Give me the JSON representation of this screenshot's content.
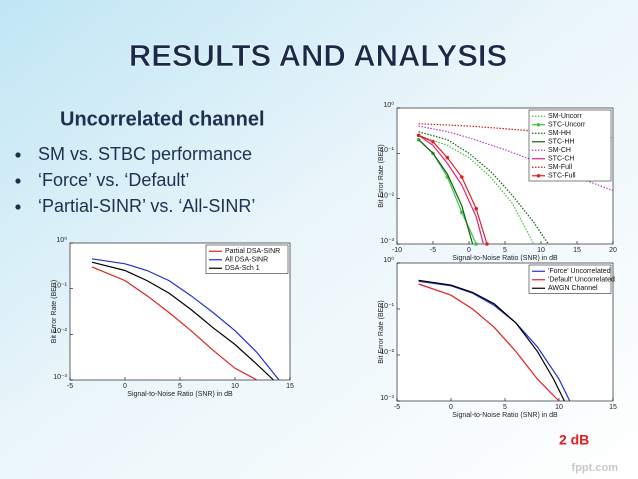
{
  "title": "RESULTS AND ANALYSIS",
  "subtitle": "Uncorrelated channel",
  "bullets": [
    "SM vs. STBC performance",
    "‘Force’ vs. ‘Default’",
    "‘Partial-SINR’ vs. ‘All-SINR’"
  ],
  "watermark": "fppt.com",
  "chart_data": [
    {
      "type": "line",
      "ylog": true,
      "xlabel": "Signal-to-Noise Ratio (SNR) in dB",
      "ylabel": "Bit Error Rate (BER)",
      "xlim": [
        -5,
        15
      ],
      "xticks": [
        -5,
        0,
        5,
        10,
        15
      ],
      "ylim": [
        0.001,
        1
      ],
      "yticks": [
        {
          "value": 0.001,
          "label": "10⁻³"
        },
        {
          "value": 0.01,
          "label": "10⁻²"
        },
        {
          "value": 0.1,
          "label": "10⁻¹"
        },
        {
          "value": 1,
          "label": "10⁰"
        }
      ],
      "legend": "upper right",
      "series": [
        {
          "name": "Partial DSA-SINR",
          "color": "#e02020",
          "style": "solid",
          "x": [
            -3,
            0,
            2,
            4,
            6,
            8,
            10,
            12
          ],
          "values": [
            0.3,
            0.15,
            0.07,
            0.03,
            0.012,
            0.0045,
            0.0018,
            0.001
          ]
        },
        {
          "name": "All DSA-SINR",
          "color": "#2030d0",
          "style": "solid",
          "x": [
            -3,
            0,
            2,
            4,
            6,
            8,
            10,
            12,
            14
          ],
          "values": [
            0.45,
            0.35,
            0.25,
            0.15,
            0.07,
            0.03,
            0.012,
            0.004,
            0.001
          ]
        },
        {
          "name": "DSA-Sch 1",
          "color": "#000000",
          "style": "solid",
          "x": [
            -3,
            0,
            2,
            4,
            6,
            8,
            10,
            12,
            13.5
          ],
          "values": [
            0.38,
            0.25,
            0.15,
            0.08,
            0.035,
            0.014,
            0.006,
            0.0022,
            0.001
          ]
        }
      ]
    },
    {
      "type": "line",
      "ylog": true,
      "xlabel": "Signal-to-Noise Ratio (SNR) in dB",
      "ylabel": "Bit Error Rate (BER)",
      "xlim": [
        -10,
        20
      ],
      "xticks": [
        -10,
        -5,
        0,
        5,
        10,
        15,
        20
      ],
      "ylim": [
        0.001,
        1
      ],
      "yticks": [
        {
          "value": 0.001,
          "label": "10⁻³"
        },
        {
          "value": 0.01,
          "label": "10⁻²"
        },
        {
          "value": 0.1,
          "label": "10⁻¹"
        },
        {
          "value": 1,
          "label": "10⁰"
        }
      ],
      "legend": "upper right",
      "series": [
        {
          "name": "SM-Uncorr",
          "color": "#40c040",
          "style": "dotted",
          "x": [
            -7,
            -3,
            0,
            3,
            6,
            9
          ],
          "values": [
            0.25,
            0.15,
            0.08,
            0.03,
            0.008,
            0.001
          ]
        },
        {
          "name": "STC-Uncorr",
          "color": "#40c040",
          "style": "solid",
          "marker": true,
          "x": [
            -7,
            -5,
            -3,
            -1,
            1
          ],
          "values": [
            0.2,
            0.1,
            0.03,
            0.005,
            0.001
          ]
        },
        {
          "name": "SM-HH",
          "color": "#106010",
          "style": "dotted",
          "x": [
            -7,
            -3,
            0,
            3,
            6,
            9,
            11
          ],
          "values": [
            0.3,
            0.2,
            0.1,
            0.04,
            0.012,
            0.003,
            0.001
          ]
        },
        {
          "name": "STC-HH",
          "color": "#106010",
          "style": "solid",
          "x": [
            -7,
            -5,
            -3,
            -1,
            0.5
          ],
          "values": [
            0.2,
            0.1,
            0.035,
            0.007,
            0.001
          ]
        },
        {
          "name": "SM-CH",
          "color": "#b040c0",
          "style": "dotted",
          "x": [
            -7,
            -3,
            0,
            5,
            10,
            15,
            20
          ],
          "values": [
            0.4,
            0.3,
            0.22,
            0.12,
            0.06,
            0.03,
            0.015
          ]
        },
        {
          "name": "STC-CH",
          "color": "#e02080",
          "style": "solid",
          "x": [
            -7,
            -5,
            -3,
            -1,
            1,
            2
          ],
          "values": [
            0.25,
            0.15,
            0.06,
            0.02,
            0.004,
            0.001
          ]
        },
        {
          "name": "SM-Full",
          "color": "#c02020",
          "style": "dotted",
          "x": [
            -7,
            0,
            5,
            10,
            15,
            20
          ],
          "values": [
            0.45,
            0.4,
            0.35,
            0.3,
            0.25,
            0.22
          ]
        },
        {
          "name": "STC-Full",
          "color": "#e02020",
          "style": "solid",
          "marker": true,
          "x": [
            -7,
            -5,
            -3,
            -1,
            1,
            2.5
          ],
          "values": [
            0.25,
            0.18,
            0.08,
            0.03,
            0.006,
            0.001
          ]
        }
      ]
    },
    {
      "type": "line",
      "ylog": true,
      "xlabel": "Signal-to-Noise Ratio (SNR) in dB",
      "ylabel": "Bit Error Rate (BER)",
      "xlim": [
        -5,
        15
      ],
      "xticks": [
        -5,
        0,
        5,
        10,
        15
      ],
      "ylim": [
        0.001,
        1
      ],
      "yticks": [
        {
          "value": 0.001,
          "label": "10⁻³"
        },
        {
          "value": 0.01,
          "label": "10⁻²"
        },
        {
          "value": 0.1,
          "label": "10⁻¹"
        },
        {
          "value": 1,
          "label": "10⁰"
        }
      ],
      "legend": "upper right",
      "annotation": "2 dB",
      "series": [
        {
          "name": "'Force' Uncorrelated",
          "color": "#2030d0",
          "style": "solid",
          "x": [
            -3,
            0,
            2,
            4,
            6,
            8,
            10,
            11
          ],
          "values": [
            0.4,
            0.32,
            0.22,
            0.12,
            0.05,
            0.015,
            0.003,
            0.001
          ]
        },
        {
          "name": "'Default' Uncorrelated",
          "color": "#e02020",
          "style": "solid",
          "x": [
            -3,
            0,
            2,
            4,
            6,
            8,
            10
          ],
          "values": [
            0.35,
            0.2,
            0.1,
            0.04,
            0.012,
            0.003,
            0.001
          ]
        },
        {
          "name": "AWGN Channel",
          "color": "#000000",
          "style": "solid",
          "x": [
            -3,
            0,
            2,
            4,
            6,
            8,
            9.5,
            10.5
          ],
          "values": [
            0.42,
            0.33,
            0.23,
            0.13,
            0.05,
            0.012,
            0.003,
            0.001
          ]
        }
      ]
    }
  ]
}
